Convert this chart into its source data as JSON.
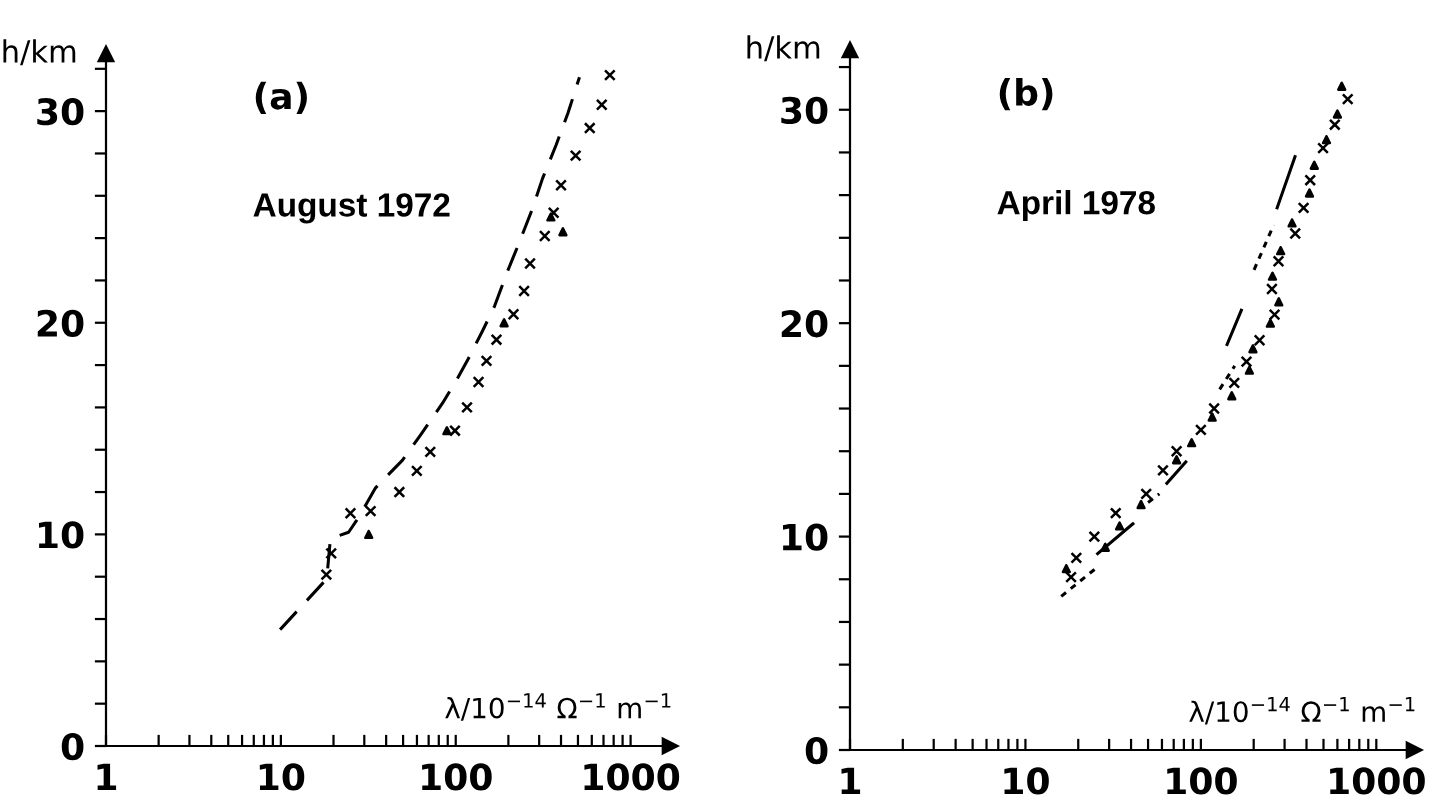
{
  "chart_data": [
    {
      "type": "scatter",
      "title": "(a)",
      "subtitle": "August 1972",
      "xlabel": "λ/10$^{−14}$ Ω$^{−1}$ m$^{−1}$",
      "ylabel": "h/km",
      "log": "x",
      "xlim": [
        1,
        1680
      ],
      "ylim": [
        0,
        32.7
      ],
      "xticks": [
        1,
        {
          "value": 2,
          "label": null
        },
        {
          "value": 3,
          "label": null
        },
        {
          "value": 4,
          "label": null
        },
        {
          "value": 5,
          "label": null
        },
        {
          "value": 6,
          "label": null
        },
        {
          "value": 7,
          "label": null
        },
        {
          "value": 8,
          "label": null
        },
        {
          "value": 9,
          "label": null
        },
        10,
        {
          "value": 20,
          "label": null
        },
        {
          "value": 30,
          "label": null
        },
        {
          "value": 40,
          "label": null
        },
        {
          "value": 50,
          "label": null
        },
        {
          "value": 60,
          "label": null
        },
        {
          "value": 70,
          "label": null
        },
        {
          "value": 80,
          "label": null
        },
        {
          "value": 90,
          "label": null
        },
        100,
        {
          "value": 200,
          "label": null
        },
        {
          "value": 300,
          "label": null
        },
        {
          "value": 400,
          "label": null
        },
        {
          "value": 500,
          "label": null
        },
        {
          "value": 600,
          "label": null
        },
        {
          "value": 700,
          "label": null
        },
        {
          "value": 800,
          "label": null
        },
        {
          "value": 900,
          "label": null
        },
        1000
      ],
      "yticks": [
        0,
        {
          "value": 2,
          "label": null
        },
        {
          "value": 4,
          "label": null
        },
        {
          "value": 6,
          "label": null
        },
        {
          "value": 8,
          "label": null
        },
        10,
        {
          "value": 12,
          "label": null
        },
        {
          "value": 14,
          "label": null
        },
        {
          "value": 16,
          "label": null
        },
        {
          "value": 18,
          "label": null
        },
        20,
        {
          "value": 22,
          "label": null
        },
        {
          "value": 24,
          "label": null
        },
        {
          "value": 26,
          "label": null
        },
        {
          "value": 28,
          "label": null
        },
        30,
        {
          "value": 32,
          "label": null
        }
      ],
      "grid": false,
      "legend": false,
      "series": [
        {
          "marker": "cross",
          "color": "#000000",
          "x": [
            18.2,
            19.4,
            25,
            32.6,
            47.6,
            59.9,
            71.5,
            99,
            116,
            135,
            150,
            171,
            214,
            246,
            266,
            323,
            363,
            400,
            485,
            584,
            684,
            761
          ],
          "values": [
            8.1,
            9.1,
            11,
            11.1,
            12,
            13,
            13.9,
            14.9,
            16,
            17.2,
            18.2,
            19.2,
            20.4,
            21.5,
            22.8,
            24.1,
            25.2,
            26.5,
            27.9,
            29.2,
            30.3,
            31.7
          ]
        },
        {
          "marker": "triangle",
          "color": "#000000",
          "x": [
            31.8,
            89,
            189,
            350,
            410
          ],
          "values": [
            10,
            14.9,
            20,
            25,
            24.3
          ]
        },
        {
          "type": "line",
          "line_style": "dashed",
          "color": "#000000",
          "x": [
            9.9,
            18.3,
            19.2,
            24.4,
            27.8,
            34.8,
            49.5,
            63,
            84,
            99.6,
            118,
            142,
            167,
            197,
            231,
            275,
            313,
            375,
            438,
            510
          ],
          "values": [
            5.5,
            7.9,
            9.8,
            10.1,
            10.8,
            12.2,
            13.5,
            14.7,
            16.2,
            17.2,
            18.3,
            19.6,
            20.8,
            22.4,
            23.8,
            25.4,
            26.8,
            28.4,
            29.9,
            31.6
          ]
        }
      ]
    },
    {
      "type": "scatter",
      "title": "(b)",
      "subtitle": "April 1978",
      "xlabel": "λ/10$^{−14}$ Ω$^{−1}$ m$^{−1}$",
      "ylabel": "h/km",
      "log": "x",
      "xlim": [
        1,
        1640
      ],
      "ylim": [
        0,
        32.8
      ],
      "xticks": [
        1,
        {
          "value": 2,
          "label": null
        },
        {
          "value": 3,
          "label": null
        },
        {
          "value": 4,
          "label": null
        },
        {
          "value": 5,
          "label": null
        },
        {
          "value": 6,
          "label": null
        },
        {
          "value": 7,
          "label": null
        },
        {
          "value": 8,
          "label": null
        },
        {
          "value": 9,
          "label": null
        },
        10,
        {
          "value": 20,
          "label": null
        },
        {
          "value": 30,
          "label": null
        },
        {
          "value": 40,
          "label": null
        },
        {
          "value": 50,
          "label": null
        },
        {
          "value": 60,
          "label": null
        },
        {
          "value": 70,
          "label": null
        },
        {
          "value": 80,
          "label": null
        },
        {
          "value": 90,
          "label": null
        },
        100,
        {
          "value": 200,
          "label": null
        },
        {
          "value": 300,
          "label": null
        },
        {
          "value": 400,
          "label": null
        },
        {
          "value": 500,
          "label": null
        },
        {
          "value": 600,
          "label": null
        },
        {
          "value": 700,
          "label": null
        },
        {
          "value": 800,
          "label": null
        },
        {
          "value": 900,
          "label": null
        },
        1000
      ],
      "yticks": [
        0,
        {
          "value": 2,
          "label": null
        },
        {
          "value": 4,
          "label": null
        },
        {
          "value": 6,
          "label": null
        },
        {
          "value": 8,
          "label": null
        },
        10,
        {
          "value": 12,
          "label": null
        },
        {
          "value": 14,
          "label": null
        },
        {
          "value": 16,
          "label": null
        },
        {
          "value": 18,
          "label": null
        },
        20,
        {
          "value": 22,
          "label": null
        },
        {
          "value": 24,
          "label": null
        },
        {
          "value": 26,
          "label": null
        },
        {
          "value": 28,
          "label": null
        },
        30,
        {
          "value": 32,
          "label": null
        }
      ],
      "grid": false,
      "legend": false,
      "series": [
        {
          "marker": "cross",
          "color": "#000000",
          "x": [
            18.2,
            19.5,
            24.7,
            32.7,
            48.8,
            60.8,
            72.7,
            100,
            119,
            155,
            182,
            216,
            263,
            254,
            277,
            345,
            385,
            420,
            497,
            580,
            687
          ],
          "values": [
            8.1,
            9,
            10,
            11.1,
            12,
            13.1,
            14,
            15,
            16,
            17.2,
            18.2,
            19.2,
            20.4,
            21.6,
            22.9,
            24.2,
            25.4,
            26.7,
            28.2,
            29.3,
            30.5
          ]
        },
        {
          "marker": "triangle",
          "color": "#000000",
          "x": [
            17.1,
            28.5,
            34.4,
            45.6,
            72.7,
            88.6,
            116,
            150,
            189,
            198,
            249,
            278,
            256,
            285,
            331,
            416,
            443,
            520,
            600,
            635
          ],
          "values": [
            8.5,
            9.5,
            10.5,
            11.5,
            13.6,
            14.4,
            15.6,
            16.6,
            17.8,
            18.8,
            20,
            21,
            22.2,
            23.4,
            24.7,
            26.1,
            27.4,
            28.6,
            29.8,
            31.1
          ]
        },
        {
          "type": "line",
          "line_style": "dotted",
          "color": "#000000",
          "x": [
            16,
            25.1,
            null,
            50,
            58,
            null,
            128,
            156,
            null,
            201,
            260
          ],
          "values": [
            7.2,
            8.5,
            null,
            11.6,
            12,
            null,
            16.9,
            18,
            null,
            22.5,
            24.6
          ]
        },
        {
          "type": "line",
          "line_style": "solid",
          "color": "#000000",
          "x": [
            25.8,
            41,
            null,
            64,
            82,
            null,
            141,
            170,
            null,
            272,
            344
          ],
          "values": [
            9.2,
            10.6,
            null,
            12.5,
            13.5,
            null,
            19,
            20.6,
            null,
            25.4,
            27.8
          ]
        }
      ]
    }
  ]
}
